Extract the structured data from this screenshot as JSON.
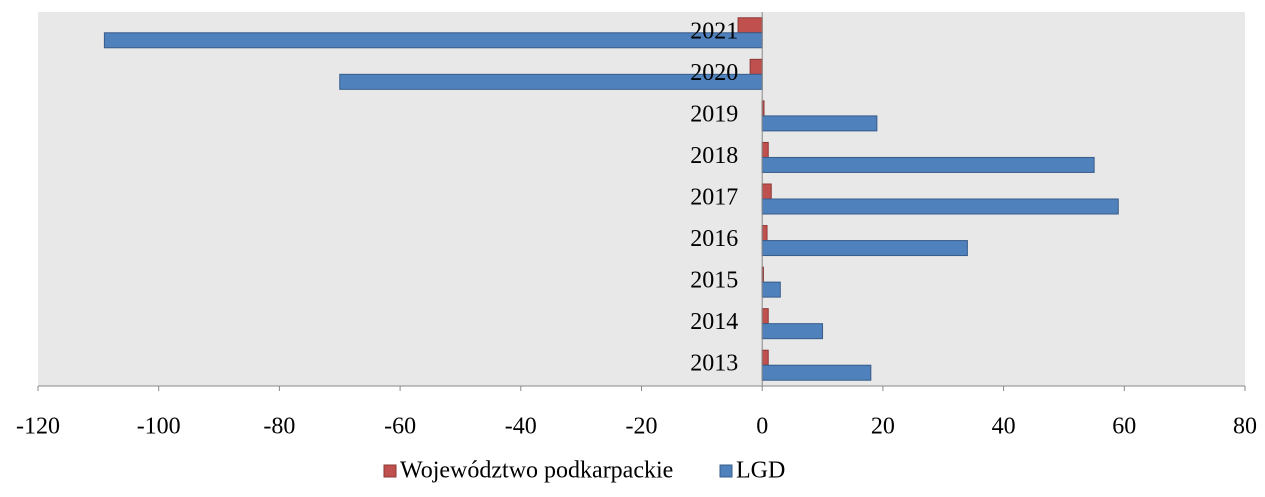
{
  "chart_data": {
    "type": "bar",
    "orientation": "horizontal",
    "categories": [
      "2013",
      "2014",
      "2015",
      "2016",
      "2017",
      "2018",
      "2019",
      "2020",
      "2021"
    ],
    "series": [
      {
        "name": "Województwo podkarpackie",
        "color": "#c0504d",
        "values": [
          1,
          1,
          0.2,
          0.8,
          1.5,
          1,
          0.3,
          -2,
          -4
        ]
      },
      {
        "name": "LGD",
        "color": "#4f81bd",
        "values": [
          18,
          10,
          3,
          34,
          59,
          55,
          19,
          -70,
          -109
        ]
      }
    ],
    "xlim": [
      -120,
      80
    ],
    "xticks": [
      -120,
      -100,
      -80,
      -60,
      -40,
      -20,
      0,
      20,
      40,
      60,
      80
    ],
    "legend": "bottom"
  }
}
